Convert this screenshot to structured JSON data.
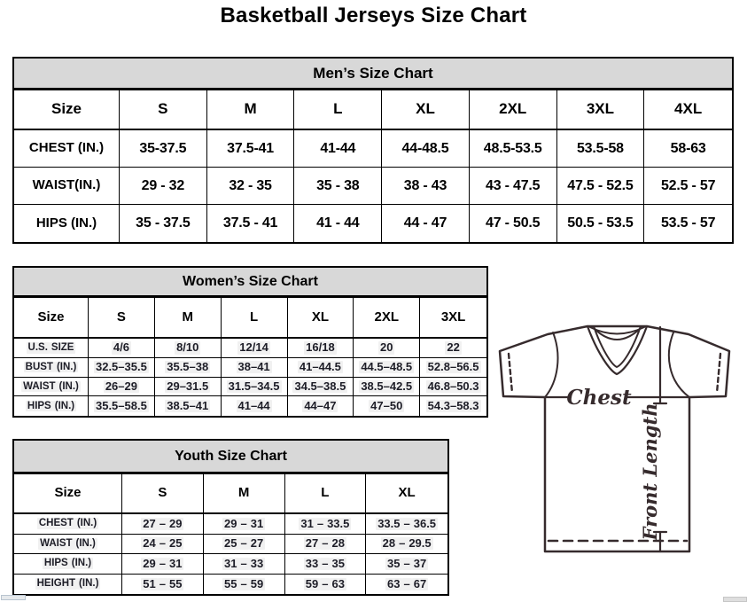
{
  "page_title": "Basketball Jerseys Size Chart",
  "colors": {
    "header_band": "#d8d8d8",
    "table_border": "#000000",
    "secondary_text": "#1d1d27",
    "value_highlight": "#f1f1f1",
    "diagram_stroke": "#362b2d"
  },
  "tables": {
    "mens": {
      "title": "Men’s Size Chart",
      "highlighted": false,
      "size_header": {
        "label": "Size",
        "sizes": [
          "S",
          "M",
          "L",
          "XL",
          "2XL",
          "3XL",
          "4XL"
        ]
      },
      "rows": [
        {
          "label": "CHEST (IN.)",
          "values": [
            "35-37.5",
            "37.5-41",
            "41-44",
            "44-48.5",
            "48.5-53.5",
            "53.5-58",
            "58-63"
          ]
        },
        {
          "label": "WAIST(IN.)",
          "values": [
            "29 - 32",
            "32 - 35",
            "35 - 38",
            "38 - 43",
            "43 - 47.5",
            "47.5 - 52.5",
            "52.5 - 57"
          ]
        },
        {
          "label": "HIPS (IN.)",
          "values": [
            "35 - 37.5",
            "37.5 - 41",
            "41 - 44",
            "44 - 47",
            "47 - 50.5",
            "50.5 - 53.5",
            "53.5 - 57"
          ]
        }
      ]
    },
    "womens": {
      "title": "Women’s Size Chart",
      "highlighted": true,
      "size_header": {
        "label": "Size",
        "sizes": [
          "S",
          "M",
          "L",
          "XL",
          "2XL",
          "3XL"
        ]
      },
      "rows": [
        {
          "label": "U.S. SIZE",
          "values": [
            "4/6",
            "8/10",
            "12/14",
            "16/18",
            "20",
            "22"
          ]
        },
        {
          "label": "BUST (IN.)",
          "values": [
            "32.5–35.5",
            "35.5–38",
            "38–41",
            "41–44.5",
            "44.5–48.5",
            "52.8–56.5"
          ]
        },
        {
          "label": "WAIST (IN.)",
          "values": [
            "26–29",
            "29–31.5",
            "31.5–34.5",
            "34.5–38.5",
            "38.5–42.5",
            "46.8–50.3"
          ]
        },
        {
          "label": "HIPS (IN.)",
          "values": [
            "35.5–58.5",
            "38.5–41",
            "41–44",
            "44–47",
            "47–50",
            "54.3–58.3"
          ]
        }
      ]
    },
    "youth": {
      "title": "Youth Size Chart",
      "highlighted": true,
      "size_header": {
        "label": "Size",
        "sizes": [
          "S",
          "M",
          "L",
          "XL"
        ]
      },
      "rows": [
        {
          "label": "CHEST (IN.)",
          "values": [
            "27 – 29",
            "29 – 31",
            "31 – 33.5",
            "33.5 – 36.5"
          ]
        },
        {
          "label": "WAIST (IN.)",
          "values": [
            "24 – 25",
            "25 – 27",
            "27 – 28",
            "28 – 29.5"
          ]
        },
        {
          "label": "HIPS (IN.)",
          "values": [
            "29 – 31",
            "31 – 33",
            "33 – 35",
            "35 – 37"
          ]
        },
        {
          "label": "HEIGHT (IN.)",
          "values": [
            "51 – 55",
            "55 – 59",
            "59 – 63",
            "63 – 67"
          ]
        }
      ]
    }
  },
  "diagram": {
    "chest_label": "Chest",
    "front_length_label": "Front Length"
  }
}
